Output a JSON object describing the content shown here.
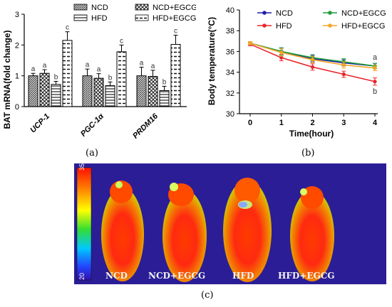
{
  "captions": {
    "a": "(a)",
    "b": "(b)",
    "c": "(c)"
  },
  "chart_data": [
    {
      "type": "bar",
      "ylabel": "BAT mRNA(fold change)",
      "ylim": [
        0,
        3
      ],
      "yticks": [
        0,
        1,
        2,
        3
      ],
      "categories": [
        "UCP-1",
        "PGC-1α",
        "PRDM16"
      ],
      "legend_position": "top",
      "series": [
        {
          "name": "NCD",
          "values": [
            1.0,
            1.0,
            1.0
          ],
          "errors": [
            0.08,
            0.22,
            0.28
          ],
          "letters": [
            "a",
            "a",
            "a"
          ]
        },
        {
          "name": "NCD+EGCG",
          "values": [
            1.08,
            0.92,
            0.98
          ],
          "errors": [
            0.12,
            0.15,
            0.2
          ],
          "letters": [
            "a",
            "a",
            "a"
          ]
        },
        {
          "name": "HFD",
          "values": [
            0.72,
            0.68,
            0.52
          ],
          "errors": [
            0.1,
            0.12,
            0.14
          ],
          "letters": [
            "b",
            "b",
            "b"
          ]
        },
        {
          "name": "HFD+EGCG",
          "values": [
            2.15,
            1.78,
            2.02
          ],
          "errors": [
            0.28,
            0.22,
            0.3
          ],
          "letters": [
            "c",
            "c",
            "c"
          ]
        }
      ],
      "colors": {
        "NCD": "#555555",
        "NCD+EGCG": "#777777",
        "HFD": "#ffffff",
        "HFD+EGCG": "#ffffff"
      }
    },
    {
      "type": "line",
      "xlabel": "Time(hour)",
      "ylabel": "Body temperature(°C)",
      "xlim": [
        0,
        4
      ],
      "ylim": [
        30,
        40
      ],
      "xticks": [
        0,
        1,
        2,
        3,
        4
      ],
      "yticks": [
        30,
        32,
        34,
        36,
        38,
        40
      ],
      "x": [
        0,
        1,
        2,
        3,
        4
      ],
      "legend_position": "top",
      "series": [
        {
          "name": "NCD",
          "values": [
            36.8,
            36.0,
            35.3,
            34.9,
            34.6
          ],
          "errors": [
            0.15,
            0.35,
            0.3,
            0.3,
            0.25
          ],
          "color": "#1f1fa8"
        },
        {
          "name": "HFD",
          "values": [
            36.7,
            35.4,
            34.5,
            33.8,
            33.1
          ],
          "errors": [
            0.15,
            0.3,
            0.3,
            0.3,
            0.35
          ],
          "color": "#e8272c"
        },
        {
          "name": "NCD+EGCG",
          "values": [
            36.8,
            36.0,
            35.4,
            35.0,
            34.6
          ],
          "errors": [
            0.15,
            0.35,
            0.3,
            0.3,
            0.25
          ],
          "color": "#1f9c3a"
        },
        {
          "name": "HFD+EGCG",
          "values": [
            36.8,
            35.9,
            35.2,
            34.7,
            34.4
          ],
          "errors": [
            0.15,
            0.35,
            0.3,
            0.3,
            0.25
          ],
          "color": "#f5a623"
        }
      ],
      "annotations": [
        {
          "x": 4,
          "text": "a",
          "position": "above"
        },
        {
          "x": 4,
          "text": "b",
          "position": "below"
        }
      ]
    }
  ],
  "thermal": {
    "scale_max": "35",
    "scale_min": "20",
    "labels": [
      "NCD",
      "NCD+EGCG",
      "HFD",
      "HFD+EGCG"
    ]
  }
}
